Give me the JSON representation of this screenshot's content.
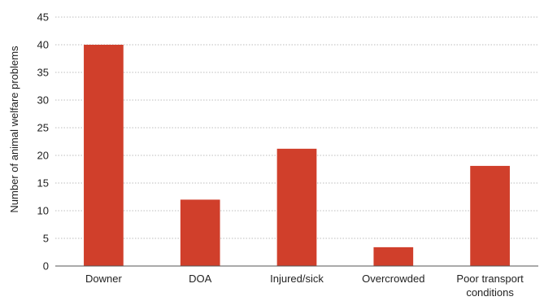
{
  "chart_data": {
    "type": "bar",
    "title": "",
    "xlabel": "",
    "ylabel": "Number of animal welfare problems",
    "categories": [
      "Downer",
      "DOA",
      "Injured/sick",
      "Overcrowded",
      "Poor transport conditions"
    ],
    "category_lines": [
      [
        "Downer"
      ],
      [
        "DOA"
      ],
      [
        "Injured/sick"
      ],
      [
        "Overcrowded"
      ],
      [
        "Poor transport",
        "conditions"
      ]
    ],
    "values": [
      40,
      12,
      21.2,
      3.4,
      18.1
    ],
    "ylim": [
      0,
      45
    ],
    "yticks": [
      0,
      5,
      10,
      15,
      20,
      25,
      30,
      35,
      40,
      45
    ],
    "grid": true,
    "bar_color": "#d03f2b"
  }
}
